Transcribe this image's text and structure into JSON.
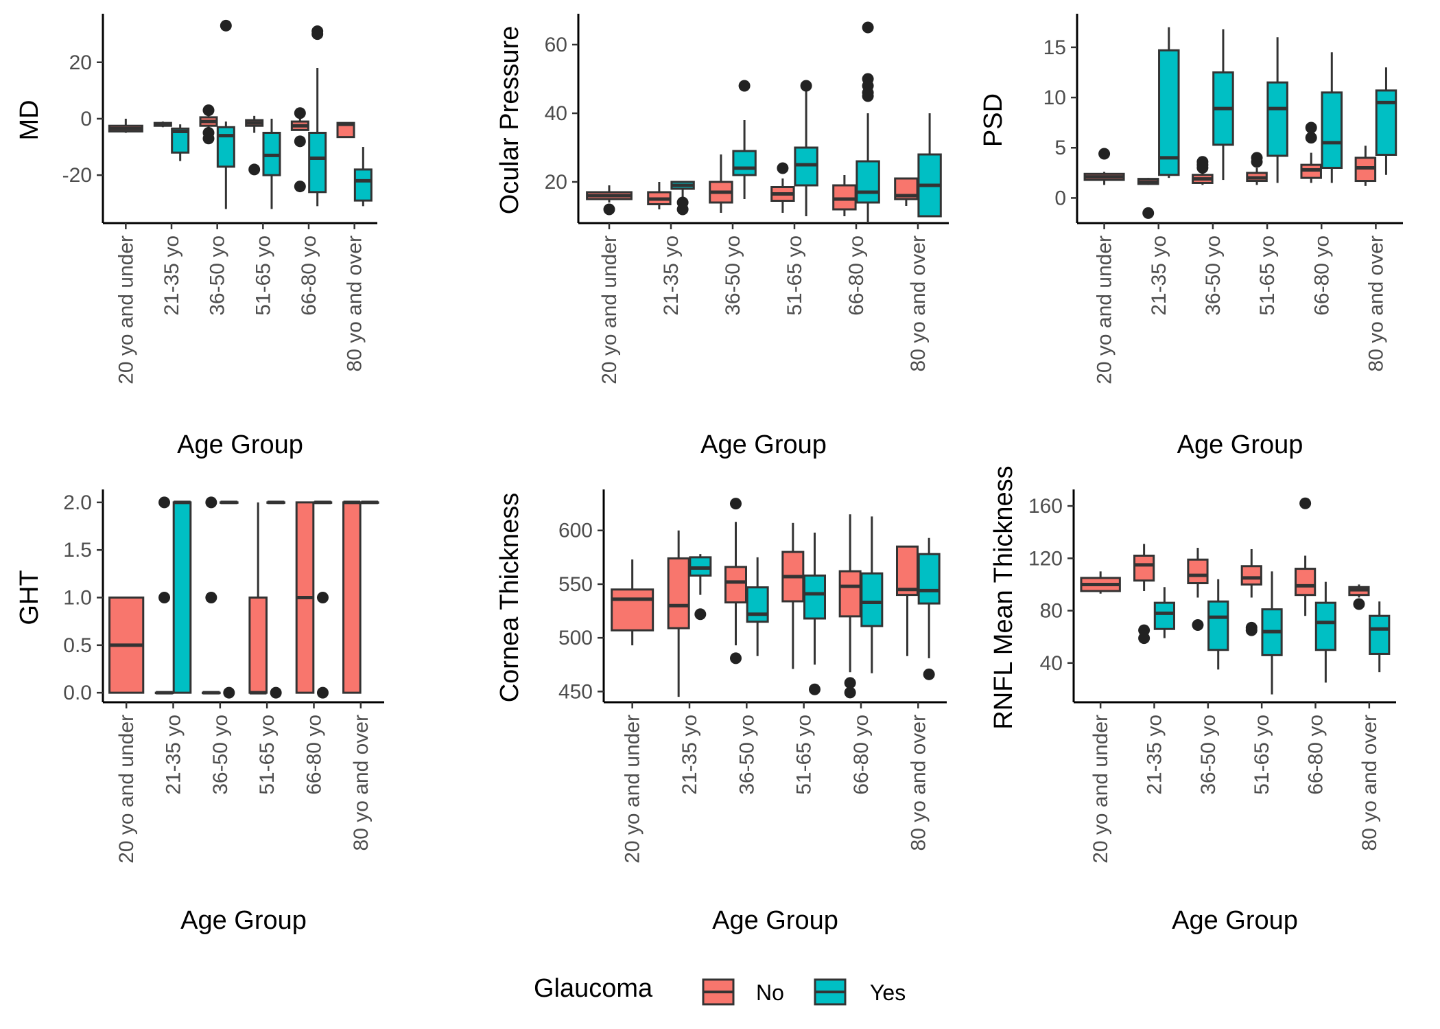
{
  "legend": {
    "title": "Glaucoma",
    "items": [
      {
        "label": "No",
        "color": "#F8766D"
      },
      {
        "label": "Yes",
        "color": "#00BFC4"
      }
    ]
  },
  "chart_data": [
    {
      "type": "box",
      "ylabel": "MD",
      "xlabel": "Age Group",
      "categories": [
        "20 yo and under",
        "21-35 yo",
        "36-50 yo",
        "51-65 yo",
        "66-80 yo",
        "80 yo and over"
      ],
      "ylim": [
        -37,
        36
      ],
      "yticks": [
        -20,
        0,
        20
      ],
      "series": [
        {
          "name": "No",
          "color": "#F8766D",
          "boxes": [
            {
              "min": -5,
              "q1": -4.5,
              "median": -3.5,
              "q3": -2.5,
              "max": 0,
              "outliers": []
            },
            {
              "min": -3,
              "q1": -2.5,
              "median": -2,
              "q3": -1.5,
              "max": -1,
              "outliers": []
            },
            {
              "min": -5,
              "q1": -2.5,
              "median": -1,
              "q3": 0.5,
              "max": 2,
              "outliers": [
                3,
                -7,
                -5
              ]
            },
            {
              "min": -5,
              "q1": -2.5,
              "median": -1.5,
              "q3": -0.5,
              "max": 1,
              "outliers": [
                -18
              ]
            },
            {
              "min": -4,
              "q1": -4,
              "median": -2.5,
              "q3": -1,
              "max": 2.5,
              "outliers": [
                -8,
                -24,
                2
              ]
            },
            {
              "min": -6.5,
              "q1": -6.5,
              "median": -2,
              "q3": -1.5,
              "max": -1.5,
              "outliers": []
            }
          ]
        },
        {
          "name": "Yes",
          "color": "#00BFC4",
          "boxes": [
            null,
            {
              "min": -15,
              "q1": -12,
              "median": -4.5,
              "q3": -3.5,
              "max": -2,
              "outliers": []
            },
            {
              "min": -32,
              "q1": -17,
              "median": -6,
              "q3": -3,
              "max": -1,
              "outliers": [
                33
              ]
            },
            {
              "min": -32,
              "q1": -20,
              "median": -13,
              "q3": -5,
              "max": 0,
              "outliers": []
            },
            {
              "min": -31,
              "q1": -26,
              "median": -14,
              "q3": -5,
              "max": 18,
              "outliers": [
                31,
                30
              ]
            },
            {
              "min": -31,
              "q1": -29,
              "median": -22,
              "q3": -18,
              "max": -10,
              "outliers": []
            }
          ]
        }
      ]
    },
    {
      "type": "box",
      "ylabel": "Ocular Pressure",
      "xlabel": "Age Group",
      "categories": [
        "20 yo and under",
        "21-35 yo",
        "36-50 yo",
        "51-65 yo",
        "66-80 yo",
        "80 yo and over"
      ],
      "ylim": [
        8,
        68
      ],
      "yticks": [
        20,
        40,
        60
      ],
      "series": [
        {
          "name": "No",
          "color": "#F8766D",
          "boxes": [
            {
              "min": 14,
              "q1": 15,
              "median": 16,
              "q3": 17,
              "max": 19,
              "outliers": [
                12
              ]
            },
            {
              "min": 12,
              "q1": 13.5,
              "median": 15,
              "q3": 17,
              "max": 20,
              "outliers": []
            },
            {
              "min": 11,
              "q1": 14,
              "median": 17,
              "q3": 20,
              "max": 28,
              "outliers": []
            },
            {
              "min": 11,
              "q1": 14.5,
              "median": 16.5,
              "q3": 18.5,
              "max": 21,
              "outliers": [
                24
              ]
            },
            {
              "min": 10,
              "q1": 12,
              "median": 15,
              "q3": 19,
              "max": 22,
              "outliers": []
            },
            {
              "min": 13,
              "q1": 15,
              "median": 16,
              "q3": 21,
              "max": 21,
              "outliers": []
            }
          ]
        },
        {
          "name": "Yes",
          "color": "#00BFC4",
          "boxes": [
            null,
            {
              "min": 12,
              "q1": 18,
              "median": 19,
              "q3": 20,
              "max": 20,
              "outliers": [
                12,
                14
              ]
            },
            {
              "min": 15,
              "q1": 22,
              "median": 24,
              "q3": 29,
              "max": 38,
              "outliers": [
                48
              ]
            },
            {
              "min": 10,
              "q1": 19,
              "median": 25,
              "q3": 30,
              "max": 47,
              "outliers": [
                48
              ]
            },
            {
              "min": 8,
              "q1": 14,
              "median": 17,
              "q3": 26,
              "max": 40,
              "outliers": [
                65,
                50,
                48,
                46,
                45
              ]
            },
            {
              "min": 10,
              "q1": 10,
              "median": 19,
              "q3": 28,
              "max": 40,
              "outliers": []
            }
          ]
        }
      ]
    },
    {
      "type": "box",
      "ylabel": "PSD",
      "xlabel": "Age Group",
      "categories": [
        "20 yo and under",
        "21-35 yo",
        "36-50 yo",
        "51-65 yo",
        "66-80 yo",
        "80 yo and over"
      ],
      "ylim": [
        -2.5,
        18
      ],
      "yticks": [
        0,
        5,
        10,
        15
      ],
      "series": [
        {
          "name": "No",
          "color": "#F8766D",
          "boxes": [
            {
              "min": 1.3,
              "q1": 1.8,
              "median": 2.1,
              "q3": 2.4,
              "max": 2.6,
              "outliers": [
                4.4
              ]
            },
            {
              "min": 1.3,
              "q1": 1.4,
              "median": 1.6,
              "q3": 1.9,
              "max": 2.0,
              "outliers": [
                -1.5
              ]
            },
            {
              "min": 1.3,
              "q1": 1.5,
              "median": 1.9,
              "q3": 2.3,
              "max": 2.6,
              "outliers": [
                3.6,
                3.3,
                3.0
              ]
            },
            {
              "min": 1.3,
              "q1": 1.7,
              "median": 2.0,
              "q3": 2.5,
              "max": 3.0,
              "outliers": [
                4.0,
                3.6
              ]
            },
            {
              "min": 1.5,
              "q1": 2.0,
              "median": 2.8,
              "q3": 3.3,
              "max": 4.5,
              "outliers": [
                7.0,
                6.0
              ]
            },
            {
              "min": 1.2,
              "q1": 1.7,
              "median": 3.0,
              "q3": 4.0,
              "max": 5.2,
              "outliers": []
            }
          ]
        },
        {
          "name": "Yes",
          "color": "#00BFC4",
          "boxes": [
            null,
            {
              "min": 2.0,
              "q1": 2.3,
              "median": 4.0,
              "q3": 14.7,
              "max": 17.0,
              "outliers": []
            },
            {
              "min": 1.8,
              "q1": 5.3,
              "median": 8.9,
              "q3": 12.5,
              "max": 16.8,
              "outliers": []
            },
            {
              "min": 1.5,
              "q1": 4.2,
              "median": 8.9,
              "q3": 11.5,
              "max": 16.0,
              "outliers": []
            },
            {
              "min": 1.5,
              "q1": 3.0,
              "median": 5.5,
              "q3": 10.5,
              "max": 14.5,
              "outliers": []
            },
            {
              "min": 2.3,
              "q1": 4.3,
              "median": 9.5,
              "q3": 10.7,
              "max": 13.0,
              "outliers": []
            }
          ]
        }
      ]
    },
    {
      "type": "box",
      "ylabel": "GHT",
      "xlabel": "Age Group",
      "categories": [
        "20 yo and under",
        "21-35 yo",
        "36-50 yo",
        "51-65 yo",
        "66-80 yo",
        "80 yo and over"
      ],
      "ylim": [
        -0.1,
        2.1
      ],
      "yticks": [
        0.0,
        0.5,
        1.0,
        1.5,
        2.0
      ],
      "ytick_labels": [
        "0.0",
        "0.5",
        "1.0",
        "1.5",
        "2.0"
      ],
      "series": [
        {
          "name": "No",
          "color": "#F8766D",
          "boxes": [
            {
              "min": 0,
              "q1": 0,
              "median": 0.5,
              "q3": 1,
              "max": 1,
              "outliers": []
            },
            {
              "min": 0,
              "q1": 0,
              "median": 0,
              "q3": 0,
              "max": 0,
              "outliers": [
                2,
                1
              ]
            },
            {
              "min": 0,
              "q1": 0,
              "median": 0,
              "q3": 0,
              "max": 0,
              "outliers": [
                2,
                1
              ]
            },
            {
              "min": 0,
              "q1": 0,
              "median": 0,
              "q3": 1,
              "max": 2,
              "outliers": []
            },
            {
              "min": 0,
              "q1": 0,
              "median": 1,
              "q3": 2,
              "max": 2,
              "outliers": []
            },
            {
              "min": 0,
              "q1": 0,
              "median": 2,
              "q3": 2,
              "max": 2,
              "outliers": []
            }
          ]
        },
        {
          "name": "Yes",
          "color": "#00BFC4",
          "boxes": [
            null,
            {
              "min": 0,
              "q1": 0,
              "median": 2,
              "q3": 2,
              "max": 2,
              "outliers": []
            },
            {
              "min": 2,
              "q1": 2,
              "median": 2,
              "q3": 2,
              "max": 2,
              "outliers": [
                0
              ]
            },
            {
              "min": 2,
              "q1": 2,
              "median": 2,
              "q3": 2,
              "max": 2,
              "outliers": [
                0
              ]
            },
            {
              "min": 2,
              "q1": 2,
              "median": 2,
              "q3": 2,
              "max": 2,
              "outliers": [
                1,
                0
              ]
            },
            {
              "min": 2,
              "q1": 2,
              "median": 2,
              "q3": 2,
              "max": 2,
              "outliers": []
            }
          ]
        }
      ]
    },
    {
      "type": "box",
      "ylabel": "Cornea Thickness",
      "xlabel": "Age Group",
      "categories": [
        "20 yo and under",
        "21-35 yo",
        "36-50 yo",
        "51-65 yo",
        "66-80 yo",
        "80 yo and over"
      ],
      "ylim": [
        440,
        635
      ],
      "yticks": [
        450,
        500,
        550,
        600
      ],
      "series": [
        {
          "name": "No",
          "color": "#F8766D",
          "boxes": [
            {
              "min": 493,
              "q1": 507,
              "median": 536,
              "q3": 545,
              "max": 573,
              "outliers": []
            },
            {
              "min": 445,
              "q1": 509,
              "median": 530,
              "q3": 574,
              "max": 600,
              "outliers": []
            },
            {
              "min": 493,
              "q1": 533,
              "median": 552,
              "q3": 566,
              "max": 608,
              "outliers": [
                625,
                481
              ]
            },
            {
              "min": 471,
              "q1": 534,
              "median": 557,
              "q3": 580,
              "max": 607,
              "outliers": []
            },
            {
              "min": 468,
              "q1": 520,
              "median": 548,
              "q3": 562,
              "max": 615,
              "outliers": [
                458,
                449
              ]
            },
            {
              "min": 483,
              "q1": 540,
              "median": 545,
              "q3": 585,
              "max": 585,
              "outliers": []
            }
          ]
        },
        {
          "name": "Yes",
          "color": "#00BFC4",
          "boxes": [
            null,
            {
              "min": 540,
              "q1": 558,
              "median": 565,
              "q3": 575,
              "max": 578,
              "outliers": [
                522
              ]
            },
            {
              "min": 483,
              "q1": 515,
              "median": 522,
              "q3": 547,
              "max": 575,
              "outliers": []
            },
            {
              "min": 475,
              "q1": 518,
              "median": 541,
              "q3": 558,
              "max": 598,
              "outliers": [
                452
              ]
            },
            {
              "min": 467,
              "q1": 511,
              "median": 533,
              "q3": 560,
              "max": 613,
              "outliers": []
            },
            {
              "min": 481,
              "q1": 532,
              "median": 544,
              "q3": 578,
              "max": 593,
              "outliers": [
                466
              ]
            }
          ]
        }
      ]
    },
    {
      "type": "box",
      "ylabel": "RNFL Mean Thickness",
      "xlabel": "Age Group",
      "categories": [
        "20 yo and under",
        "21-35 yo",
        "36-50 yo",
        "51-65 yo",
        "66-80 yo",
        "80 yo and over"
      ],
      "ylim": [
        10,
        170
      ],
      "yticks": [
        40,
        80,
        120,
        160
      ],
      "series": [
        {
          "name": "No",
          "color": "#F8766D",
          "boxes": [
            {
              "min": 93,
              "q1": 95,
              "median": 100,
              "q3": 105,
              "max": 110,
              "outliers": []
            },
            {
              "min": 95,
              "q1": 103,
              "median": 115,
              "q3": 122,
              "max": 131,
              "outliers": [
                65,
                59
              ]
            },
            {
              "min": 90,
              "q1": 101,
              "median": 107,
              "q3": 119,
              "max": 128,
              "outliers": [
                69
              ]
            },
            {
              "min": 90,
              "q1": 100,
              "median": 105,
              "q3": 114,
              "max": 127,
              "outliers": [
                67,
                65
              ]
            },
            {
              "min": 76,
              "q1": 92,
              "median": 99,
              "q3": 112,
              "max": 122,
              "outliers": [
                162
              ]
            },
            {
              "min": 90,
              "q1": 92,
              "median": 96,
              "q3": 98,
              "max": 100,
              "outliers": [
                85
              ]
            }
          ]
        },
        {
          "name": "Yes",
          "color": "#00BFC4",
          "boxes": [
            null,
            {
              "min": 59,
              "q1": 66,
              "median": 78,
              "q3": 86,
              "max": 98,
              "outliers": []
            },
            {
              "min": 35,
              "q1": 50,
              "median": 75,
              "q3": 87,
              "max": 104,
              "outliers": []
            },
            {
              "min": 16,
              "q1": 46,
              "median": 64,
              "q3": 81,
              "max": 110,
              "outliers": []
            },
            {
              "min": 25,
              "q1": 50,
              "median": 71,
              "q3": 86,
              "max": 102,
              "outliers": []
            },
            {
              "min": 33,
              "q1": 47,
              "median": 66,
              "q3": 76,
              "max": 87,
              "outliers": []
            }
          ]
        }
      ]
    }
  ]
}
